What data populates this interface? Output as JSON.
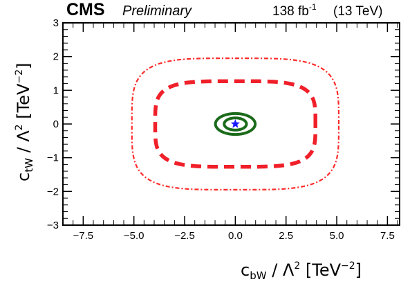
{
  "header": {
    "experiment": "CMS",
    "status": "Preliminary",
    "lumi_value": "138 fb",
    "lumi_exponent": "-1",
    "energy": "(13 TeV)"
  },
  "chart_data": {
    "type": "contour",
    "title": "",
    "xlabel": {
      "var": "c",
      "sub": "bW",
      "denominator": " / Λ",
      "power": "2",
      "unit_open": " [TeV",
      "unit_power": "−2",
      "unit_close": "]"
    },
    "ylabel": {
      "var": "c",
      "sub": "tW",
      "denominator": " / Λ",
      "power": "2",
      "unit_open": " [TeV",
      "unit_power": "−2",
      "unit_close": "]"
    },
    "xlim": [
      -8.5,
      8.1
    ],
    "ylim": [
      -3,
      3
    ],
    "xticks": [
      "−7.5",
      "−5.0",
      "−2.5",
      "0.0",
      "2.5",
      "5.0",
      "7.5"
    ],
    "xtick_values": [
      -7.5,
      -5.0,
      -2.5,
      0.0,
      2.5,
      5.0,
      7.5
    ],
    "yticks": [
      "−3",
      "−2",
      "−1",
      "0",
      "1",
      "2",
      "3"
    ],
    "ytick_values": [
      -3,
      -2,
      -1,
      0,
      1,
      2,
      3
    ],
    "grid": false,
    "best_fit": {
      "x": 0.0,
      "y": 0.0,
      "marker": "star",
      "color": "#1a1aff"
    },
    "contours": [
      {
        "style": "dash-dot",
        "color": "#ff2a2a",
        "center": [
          0.0,
          0.0
        ],
        "half_width": 5.1,
        "half_height": 1.95,
        "shape_exponent": 4
      },
      {
        "style": "dashed",
        "color": "#f0202a",
        "center": [
          0.0,
          0.0
        ],
        "half_width": 3.95,
        "half_height": 1.27,
        "shape_exponent": 4
      },
      {
        "style": "solid",
        "color": "#1b6b1b",
        "center": [
          0.0,
          0.0
        ],
        "half_width": 0.98,
        "half_height": 0.31,
        "shape_exponent": 2
      },
      {
        "style": "solid",
        "color": "#1b6b1b",
        "center": [
          0.0,
          0.0
        ],
        "half_width": 0.55,
        "half_height": 0.18,
        "shape_exponent": 2
      }
    ]
  }
}
